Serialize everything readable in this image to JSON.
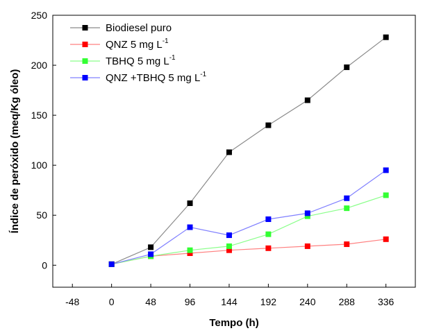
{
  "chart_data": {
    "type": "line",
    "xlabel": "Tempo (h)",
    "ylabel": "Índice de peróxido (meq/Kg óleo)",
    "xlim": [
      -72,
      372
    ],
    "ylim": [
      -22,
      250
    ],
    "xticks": [
      -48,
      0,
      48,
      96,
      144,
      192,
      240,
      288,
      336
    ],
    "yticks": [
      0,
      50,
      100,
      150,
      200,
      250
    ],
    "x": [
      0,
      48,
      96,
      144,
      192,
      240,
      288,
      336
    ],
    "legend_position": "top-left",
    "grid": false,
    "series": [
      {
        "name": "Biodiesel puro",
        "name_sup": "",
        "marker_color": "#000000",
        "line_color": "#8a8a8a",
        "values": [
          1,
          18,
          62,
          113,
          140,
          165,
          198,
          228
        ]
      },
      {
        "name": "QNZ 5 mg L",
        "name_sup": "-1",
        "marker_color": "#ff0000",
        "line_color": "#ff8080",
        "values": [
          1,
          9,
          12,
          15,
          17,
          19,
          21,
          26
        ]
      },
      {
        "name": "TBHQ 5 mg L",
        "name_sup": "-1",
        "marker_color": "#33ff33",
        "line_color": "#8aff8a",
        "values": [
          1,
          9,
          15,
          19,
          31,
          49,
          57,
          70
        ]
      },
      {
        "name": "QNZ +TBHQ 5 mg L",
        "name_sup": "-1",
        "marker_color": "#0000ff",
        "line_color": "#8080ff",
        "values": [
          1,
          11,
          38,
          30,
          46,
          52,
          67,
          95
        ]
      }
    ]
  }
}
